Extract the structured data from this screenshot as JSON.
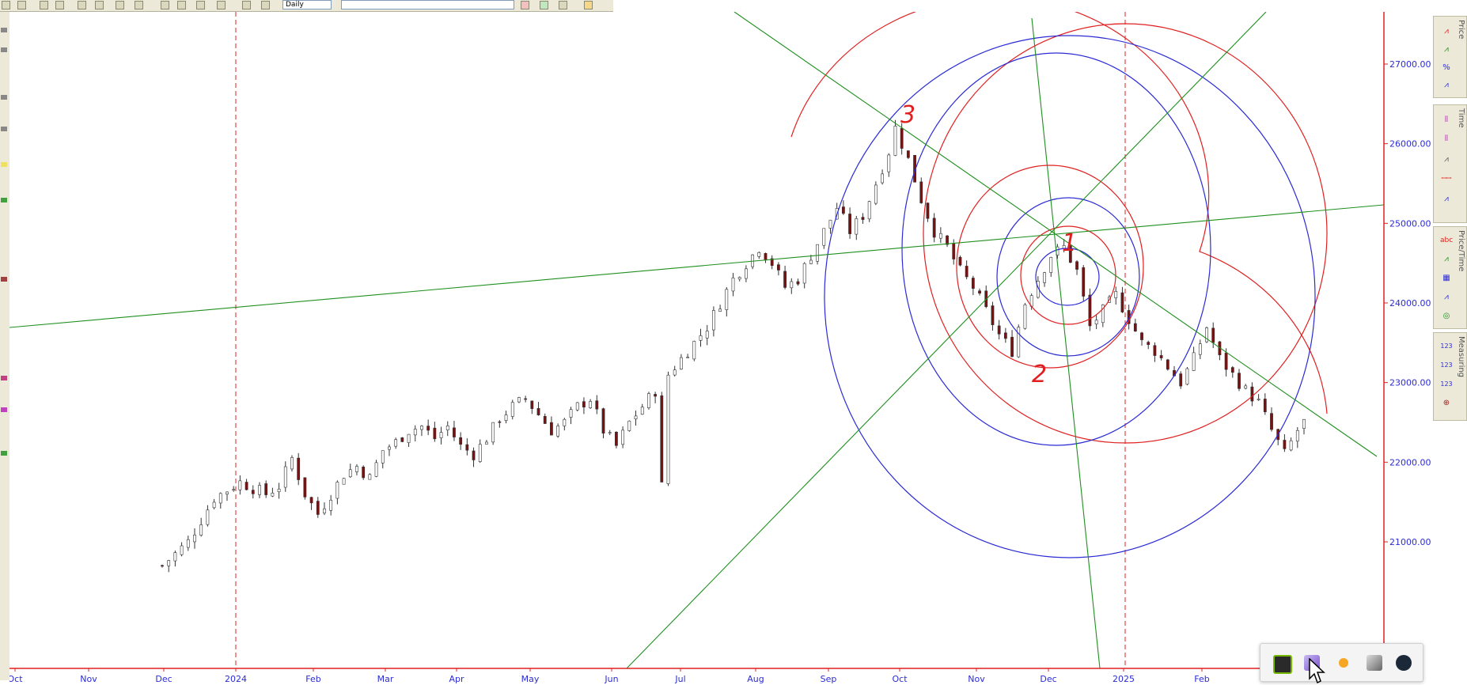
{
  "toolbar": {
    "period_select": "Daily",
    "symbol_select": ""
  },
  "colors": {
    "candle_up": "#ffffff",
    "candle_down": "#7a1010",
    "axis": "#e02020",
    "tick_text": "#2b2bd6",
    "trend_line": "#1f8f1f",
    "circle_red": "#e02020",
    "circle_blue": "#2b2bd6"
  },
  "chart_data": {
    "type": "candlestick",
    "title": "",
    "y_ticks": [
      "27000.00",
      "26000.00",
      "25000.00",
      "24000.00",
      "23000.00",
      "22000.00",
      "21000.00"
    ],
    "x_ticks": [
      "Oct",
      "Nov",
      "Dec",
      "2024",
      "Feb",
      "Mar",
      "Apr",
      "May",
      "Jun",
      "Jul",
      "Aug",
      "Sep",
      "Oct",
      "Nov",
      "Dec",
      "2025",
      "Feb"
    ],
    "ylim": [
      20700,
      27650
    ],
    "close_path": [
      [
        1,
        20700
      ],
      [
        5,
        21000
      ],
      [
        9,
        21550
      ],
      [
        13,
        21750
      ],
      [
        17,
        21600
      ],
      [
        19,
        21700
      ],
      [
        21,
        22050
      ],
      [
        23,
        21600
      ],
      [
        25,
        21350
      ],
      [
        27,
        21600
      ],
      [
        29,
        21850
      ],
      [
        31,
        21950
      ],
      [
        33,
        21800
      ],
      [
        35,
        22150
      ],
      [
        37,
        22250
      ],
      [
        39,
        22400
      ],
      [
        41,
        22450
      ],
      [
        43,
        22300
      ],
      [
        45,
        22450
      ],
      [
        47,
        22200
      ],
      [
        49,
        22100
      ],
      [
        51,
        22300
      ],
      [
        53,
        22550
      ],
      [
        55,
        22700
      ],
      [
        57,
        22800
      ],
      [
        59,
        22600
      ],
      [
        61,
        22400
      ],
      [
        63,
        22500
      ],
      [
        65,
        22700
      ],
      [
        67,
        22800
      ],
      [
        69,
        22400
      ],
      [
        71,
        22200
      ],
      [
        73,
        22500
      ],
      [
        75,
        22700
      ],
      [
        77,
        22900
      ],
      [
        78,
        21700
      ],
      [
        79,
        23100
      ],
      [
        81,
        23300
      ],
      [
        83,
        23500
      ],
      [
        85,
        23700
      ],
      [
        87,
        24000
      ],
      [
        89,
        24300
      ],
      [
        91,
        24500
      ],
      [
        93,
        24700
      ],
      [
        95,
        24500
      ],
      [
        97,
        24200
      ],
      [
        99,
        24300
      ],
      [
        101,
        24600
      ],
      [
        103,
        24900
      ],
      [
        105,
        25200
      ],
      [
        107,
        24900
      ],
      [
        109,
        25100
      ],
      [
        111,
        25500
      ],
      [
        113,
        25900
      ],
      [
        114,
        26200
      ],
      [
        116,
        25800
      ],
      [
        118,
        25300
      ],
      [
        120,
        24900
      ],
      [
        122,
        24700
      ],
      [
        124,
        24400
      ],
      [
        126,
        24200
      ],
      [
        128,
        23900
      ],
      [
        130,
        23600
      ],
      [
        132,
        23400
      ],
      [
        134,
        24000
      ],
      [
        136,
        24300
      ],
      [
        138,
        24600
      ],
      [
        140,
        24700
      ],
      [
        142,
        24400
      ],
      [
        144,
        23700
      ],
      [
        146,
        23900
      ],
      [
        148,
        24100
      ],
      [
        150,
        23800
      ],
      [
        152,
        23500
      ],
      [
        154,
        23400
      ],
      [
        156,
        23200
      ],
      [
        158,
        23000
      ],
      [
        160,
        23300
      ],
      [
        162,
        23700
      ],
      [
        164,
        23300
      ],
      [
        166,
        23100
      ],
      [
        168,
        22900
      ],
      [
        170,
        22750
      ],
      [
        172,
        22400
      ],
      [
        174,
        22100
      ],
      [
        176,
        22400
      ],
      [
        177,
        22500
      ]
    ],
    "annotations": [
      "3",
      "1",
      "2"
    ]
  },
  "right_panel": {
    "groups": [
      "Price",
      "Time",
      "Price/Time",
      "Measuring"
    ]
  },
  "tray": {
    "icons": [
      "nvidia-icon",
      "pen-app-icon",
      "weather-icon",
      "network-icon",
      "steam-icon"
    ]
  }
}
